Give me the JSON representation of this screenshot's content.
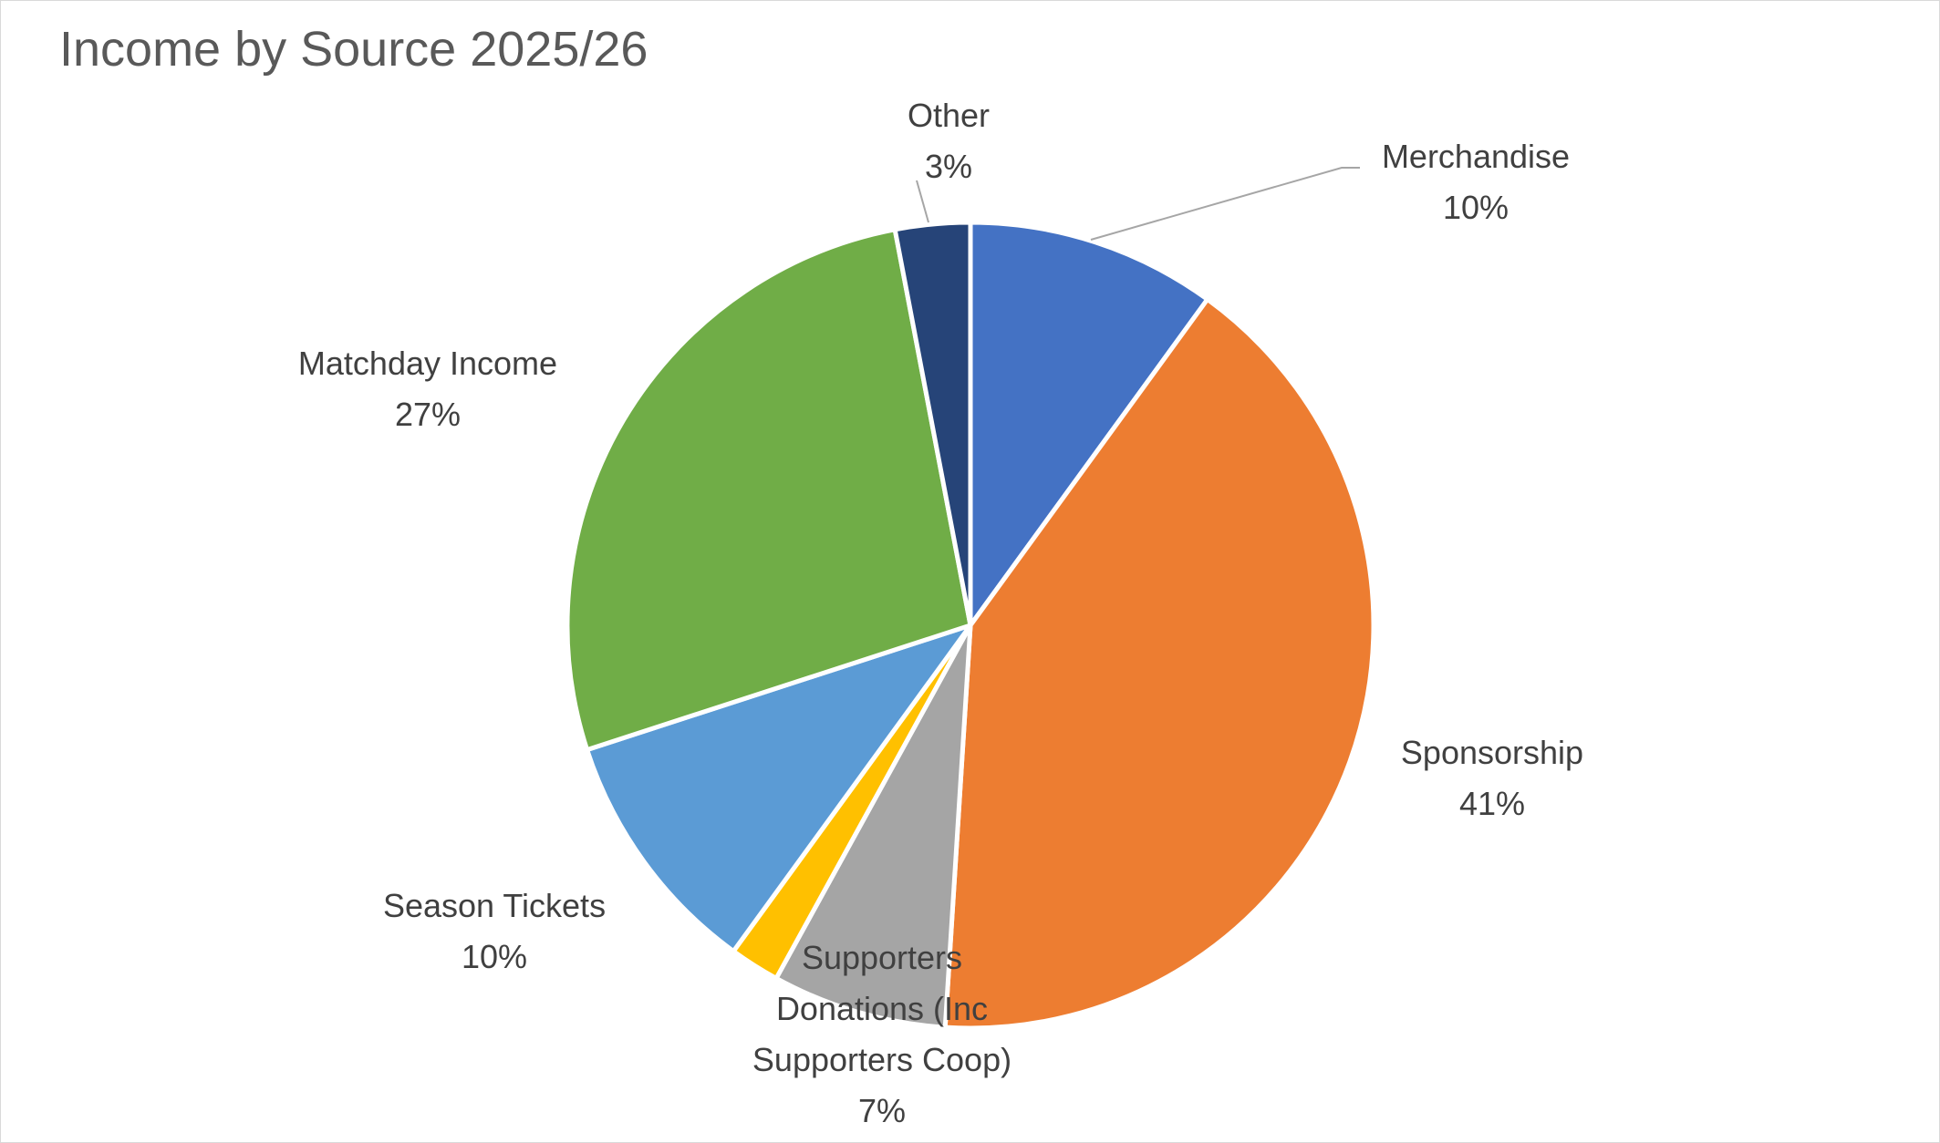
{
  "chart_data": {
    "type": "pie",
    "title": "Income by Source 2025/26",
    "slices": [
      {
        "label_lines": [
          "Merchandise"
        ],
        "pct_label": "10%",
        "value": 10,
        "color": "#4472C4"
      },
      {
        "label_lines": [
          "Sponsorship"
        ],
        "pct_label": "41%",
        "value": 41,
        "color": "#ED7D31"
      },
      {
        "label_lines": [
          "Supporters",
          "Donations (Inc",
          "Supporters Coop)"
        ],
        "pct_label": "7%",
        "value": 7,
        "color": "#A5A5A5"
      },
      {
        "label_lines": [],
        "pct_label": "",
        "value": 2,
        "color": "#FFC000"
      },
      {
        "label_lines": [
          "Season Tickets"
        ],
        "pct_label": "10%",
        "value": 10,
        "color": "#5B9BD5"
      },
      {
        "label_lines": [
          "Matchday Income"
        ],
        "pct_label": "27%",
        "value": 27,
        "color": "#70AD47"
      },
      {
        "label_lines": [
          "Other"
        ],
        "pct_label": "3%",
        "value": 3,
        "color": "#264478"
      }
    ],
    "start_angle_deg": 0,
    "direction": "clockwise",
    "legend": "none",
    "label_color": "#404040",
    "leader_line_color": "#a6a6a6"
  }
}
